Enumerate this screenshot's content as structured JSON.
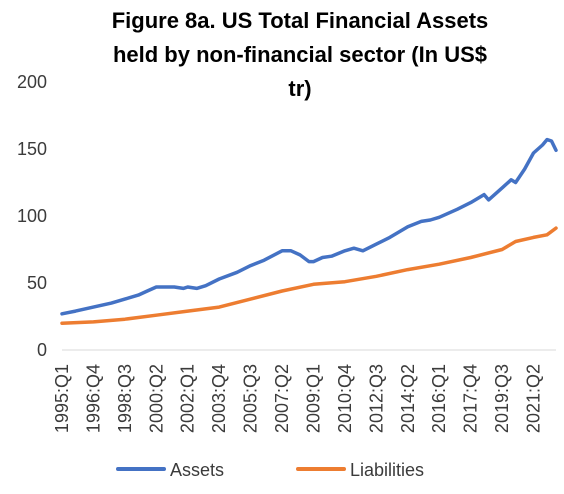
{
  "chart_data": {
    "type": "line",
    "title_lines": [
      "Figure 8a. US Total Financial Assets",
      "held by non-financial sector (In US$",
      "tr)"
    ],
    "ylim": [
      0,
      200
    ],
    "yticks": [
      0,
      50,
      100,
      150,
      200
    ],
    "x_tick_labels": [
      "1995:Q1",
      "1996:Q4",
      "1998:Q3",
      "2000:Q2",
      "2002:Q1",
      "2003:Q4",
      "2005:Q3",
      "2007:Q2",
      "2009:Q1",
      "2010:Q4",
      "2012:Q3",
      "2014:Q2",
      "2016:Q1",
      "2017:Q4",
      "2019:Q3",
      "2021:Q2"
    ],
    "x_start": "1995:Q1",
    "x_end": "2022:Q3",
    "grid": false,
    "legend_position": "bottom",
    "series": [
      {
        "name": "Assets",
        "color": "#4472C4",
        "points": [
          [
            "1995:Q1",
            27
          ],
          [
            "1995:Q4",
            29
          ],
          [
            "1996:Q4",
            32
          ],
          [
            "1997:Q4",
            35
          ],
          [
            "1998:Q3",
            38
          ],
          [
            "1999:Q2",
            41
          ],
          [
            "1999:Q4",
            44
          ],
          [
            "2000:Q2",
            47
          ],
          [
            "2000:Q4",
            47
          ],
          [
            "2001:Q2",
            47
          ],
          [
            "2001:Q4",
            46
          ],
          [
            "2002:Q1",
            47
          ],
          [
            "2002:Q3",
            46
          ],
          [
            "2003:Q1",
            48
          ],
          [
            "2003:Q4",
            53
          ],
          [
            "2004:Q4",
            58
          ],
          [
            "2005:Q3",
            63
          ],
          [
            "2006:Q2",
            67
          ],
          [
            "2007:Q2",
            74
          ],
          [
            "2007:Q4",
            74
          ],
          [
            "2008:Q2",
            71
          ],
          [
            "2008:Q4",
            66
          ],
          [
            "2009:Q1",
            66
          ],
          [
            "2009:Q3",
            69
          ],
          [
            "2010:Q1",
            70
          ],
          [
            "2010:Q4",
            74
          ],
          [
            "2011:Q2",
            76
          ],
          [
            "2011:Q4",
            74
          ],
          [
            "2012:Q3",
            79
          ],
          [
            "2013:Q2",
            84
          ],
          [
            "2014:Q2",
            92
          ],
          [
            "2015:Q1",
            96
          ],
          [
            "2015:Q3",
            97
          ],
          [
            "2016:Q1",
            99
          ],
          [
            "2016:Q3",
            102
          ],
          [
            "2017:Q1",
            105
          ],
          [
            "2017:Q4",
            110
          ],
          [
            "2018:Q3",
            116
          ],
          [
            "2018:Q4",
            112
          ],
          [
            "2019:Q3",
            121
          ],
          [
            "2020:Q1",
            127
          ],
          [
            "2020:Q2",
            125
          ],
          [
            "2020:Q4",
            135
          ],
          [
            "2021:Q2",
            147
          ],
          [
            "2021:Q4",
            153
          ],
          [
            "2022:Q1",
            157
          ],
          [
            "2022:Q2",
            156
          ],
          [
            "2022:Q3",
            149
          ]
        ]
      },
      {
        "name": "Liabilities",
        "color": "#ED7D31",
        "points": [
          [
            "1995:Q1",
            20
          ],
          [
            "1996:Q4",
            21
          ],
          [
            "1998:Q3",
            23
          ],
          [
            "2000:Q2",
            26
          ],
          [
            "2002:Q1",
            29
          ],
          [
            "2003:Q4",
            32
          ],
          [
            "2005:Q3",
            38
          ],
          [
            "2007:Q2",
            44
          ],
          [
            "2009:Q1",
            49
          ],
          [
            "2010:Q4",
            51
          ],
          [
            "2012:Q3",
            55
          ],
          [
            "2014:Q2",
            60
          ],
          [
            "2016:Q1",
            64
          ],
          [
            "2017:Q4",
            69
          ],
          [
            "2019:Q3",
            75
          ],
          [
            "2020:Q2",
            81
          ],
          [
            "2021:Q2",
            84
          ],
          [
            "2022:Q1",
            86
          ],
          [
            "2022:Q3",
            91
          ]
        ]
      }
    ]
  }
}
